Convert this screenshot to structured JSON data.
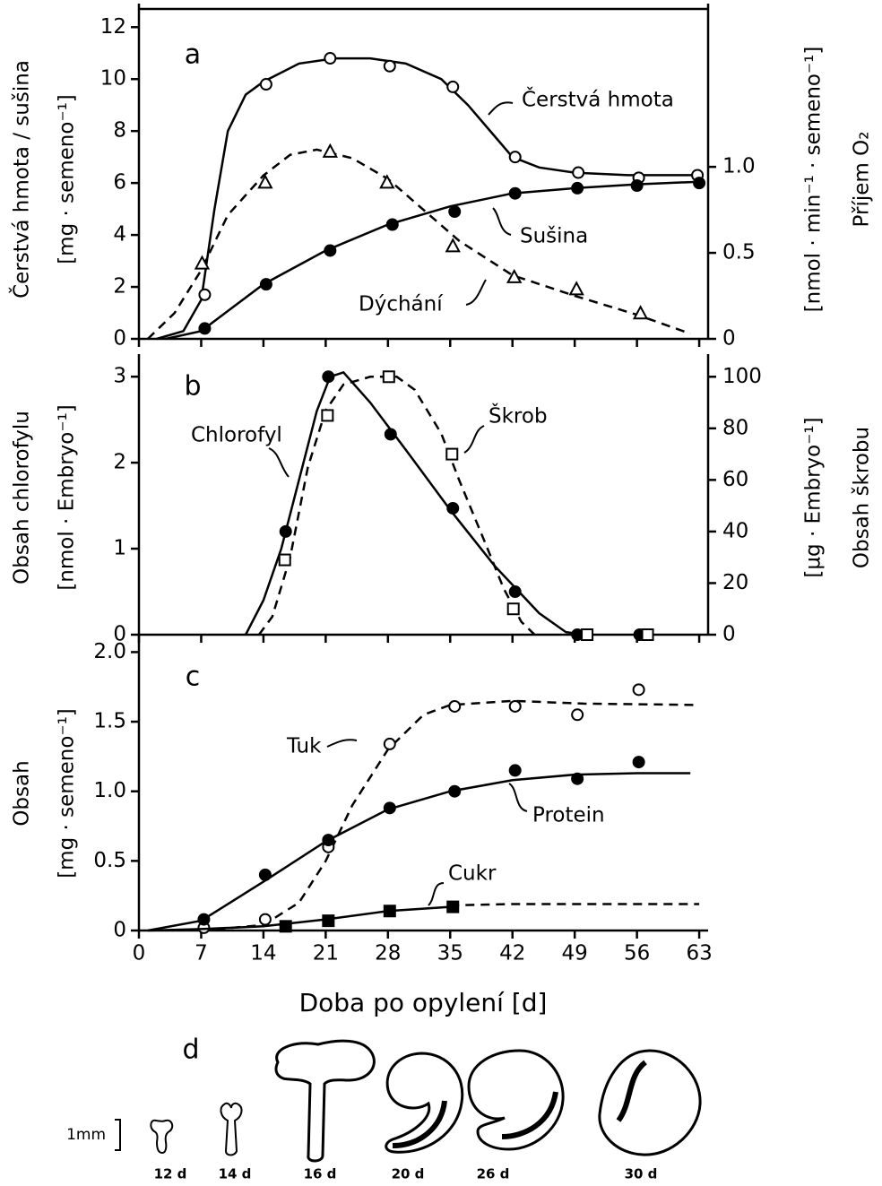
{
  "chart_data": [
    {
      "type": "line",
      "label": "a",
      "ylabel": [
        "Čerstvá hmota / sušina",
        "[mg · semeno⁻¹]"
      ],
      "y2label": [
        "[nmol · min⁻¹ · semeno⁻¹]",
        "Příjem O₂"
      ],
      "xlim": [
        0,
        64
      ],
      "xticks": [
        0,
        7,
        14,
        21,
        28,
        35,
        42,
        49,
        56,
        63
      ],
      "xtick_labels": false,
      "ylim": [
        0,
        12.7
      ],
      "yticks": [
        0,
        2,
        4,
        6,
        8,
        10,
        12
      ],
      "y2lim": [
        0,
        1.918
      ],
      "y2ticks": [
        0,
        0.5,
        {
          "value": 1,
          "label": "1.0"
        }
      ],
      "series": [
        {
          "name": "Čerstvá hmota",
          "color": "#000000",
          "marker": "circle-open",
          "points": {
            "x": [
              7.4,
              14.3,
              21.5,
              28.2,
              35.3,
              42.3,
              49.4,
              56.2,
              62.8
            ],
            "values": [
              1.7,
              9.8,
              10.8,
              10.5,
              9.7,
              7.0,
              6.4,
              6.2,
              6.3
            ]
          },
          "curves": [
            {
              "style": "solid",
              "x": [
                2,
                5,
                7,
                8.5,
                10,
                12,
                14,
                18,
                22,
                26,
                30,
                34,
                37,
                40,
                42,
                45,
                49,
                55,
                63
              ],
              "values": [
                0,
                0.3,
                1.5,
                5,
                8,
                9.4,
                9.9,
                10.6,
                10.8,
                10.8,
                10.6,
                10,
                9,
                7.8,
                7,
                6.6,
                6.4,
                6.3,
                6.3
              ]
            }
          ]
        },
        {
          "name": "Sušina",
          "color": "#000000",
          "marker": "circle-filled",
          "points": {
            "x": [
              7.4,
              14.3,
              21.5,
              28.5,
              35.5,
              42.3,
              49.3,
              56,
              63
            ],
            "values": [
              0.4,
              2.1,
              3.4,
              4.4,
              4.9,
              5.6,
              5.8,
              5.9,
              6.0
            ]
          },
          "curves": [
            {
              "style": "solid",
              "x": [
                3,
                7,
                14,
                21,
                28,
                35,
                42,
                49,
                56,
                63
              ],
              "values": [
                0,
                0.3,
                2.1,
                3.4,
                4.4,
                5.1,
                5.6,
                5.8,
                5.95,
                6.05
              ]
            }
          ]
        },
        {
          "name": "Dýchání",
          "color": "#000000",
          "marker": "triangle-open",
          "axis": "y2",
          "points": {
            "x": [
              7.1,
              14.2,
              21.5,
              27.9,
              35.3,
              42.2,
              49.2,
              56.4
            ],
            "values": [
              0.44,
              0.91,
              1.09,
              0.91,
              0.54,
              0.36,
              0.29,
              0.15
            ]
          },
          "curves": [
            {
              "style": "dashed",
              "x": [
                1,
                4,
                7,
                10,
                14,
                17,
                20,
                24,
                28,
                32,
                36,
                42,
                49,
                56,
                62
              ],
              "values": [
                0,
                0.15,
                0.4,
                0.72,
                0.95,
                1.07,
                1.1,
                1.05,
                0.93,
                0.75,
                0.57,
                0.37,
                0.25,
                0.14,
                0.03
              ]
            }
          ]
        }
      ]
    },
    {
      "type": "line",
      "label": "b",
      "ylabel": [
        "Obsah chlorofylu",
        "[nmol · Embryo⁻¹]"
      ],
      "y2label": [
        "[µg · Embryo⁻¹]",
        "Obsah škrobu"
      ],
      "xlim": [
        0,
        64
      ],
      "xticks": [
        0,
        7,
        14,
        21,
        28,
        35,
        42,
        49,
        56,
        63
      ],
      "xtick_labels": false,
      "ylim": [
        0,
        3.2
      ],
      "yticks": [
        0,
        1,
        2,
        3
      ],
      "y2lim": [
        0,
        106.7
      ],
      "y2ticks": [
        0,
        20,
        40,
        60,
        80,
        100
      ],
      "series": [
        {
          "name": "Chlorofyl",
          "color": "#000000",
          "marker": "circle-filled",
          "points": {
            "x": [
              16.5,
              21.3,
              28.3,
              35.3,
              42.3,
              49.3,
              56.3
            ],
            "values": [
              1.2,
              3.0,
              2.33,
              1.47,
              0.5,
              0,
              0
            ]
          },
          "curves": [
            {
              "style": "solid",
              "x": [
                12,
                14,
                16,
                18,
                20,
                21.5,
                23,
                26,
                30,
                35,
                40,
                45,
                48,
                50
              ],
              "values": [
                0,
                0.4,
                1.0,
                1.8,
                2.6,
                3.0,
                3.05,
                2.7,
                2.15,
                1.45,
                0.8,
                0.25,
                0.03,
                0
              ]
            }
          ]
        },
        {
          "name": "Škrob",
          "color": "#000000",
          "marker": "square-open",
          "axis": "y2",
          "points": {
            "x": [
              16.4,
              21.2,
              28.1,
              35.2,
              42.1,
              50.4,
              57.2
            ],
            "values": [
              29,
              85,
              100,
              70,
              10,
              0,
              0
            ]
          },
          "curves": [
            {
              "style": "dashed",
              "x": [
                13.5,
                15,
                17,
                19,
                21,
                23,
                26,
                29,
                31,
                34,
                36,
                39,
                41,
                43,
                44.5
              ],
              "values": [
                0,
                7,
                30,
                65,
                87,
                97,
                100,
                100,
                95,
                78,
                60,
                35,
                18,
                5,
                0
              ]
            }
          ]
        }
      ]
    },
    {
      "type": "line",
      "label": "c",
      "ylabel": [
        "Obsah",
        "[mg · semeno⁻¹]"
      ],
      "xlabel": "Doba po opylení  [d]",
      "xlim": [
        0,
        64
      ],
      "xticks": [
        0,
        7,
        14,
        21,
        28,
        35,
        42,
        49,
        56,
        63
      ],
      "xtick_labels": true,
      "ylim": [
        0,
        2.08
      ],
      "yticks": [
        0,
        0.5,
        {
          "value": 1,
          "label": "1.0"
        },
        1.5,
        {
          "value": 2,
          "label": "2.0"
        }
      ],
      "series": [
        {
          "name": "Tuk",
          "color": "#000000",
          "marker": "circle-open",
          "points": {
            "x": [
              7.3,
              14.2,
              21.3,
              28.2,
              35.5,
              42.3,
              49.3,
              56.2
            ],
            "values": [
              0.02,
              0.08,
              0.6,
              1.34,
              1.61,
              1.61,
              1.55,
              1.73
            ]
          },
          "curves": [
            {
              "style": "dashed",
              "x": [
                7,
                14,
                18,
                21,
                24,
                28,
                32,
                35,
                42,
                50,
                63
              ],
              "values": [
                0,
                0.04,
                0.2,
                0.5,
                0.9,
                1.3,
                1.55,
                1.62,
                1.65,
                1.63,
                1.62
              ]
            }
          ]
        },
        {
          "name": "Protein",
          "color": "#000000",
          "marker": "circle-filled",
          "points": {
            "x": [
              7.3,
              14.2,
              21.3,
              28.2,
              35.5,
              42.3,
              49.3,
              56.2
            ],
            "values": [
              0.08,
              0.4,
              0.65,
              0.88,
              1.0,
              1.15,
              1.09,
              1.21
            ]
          },
          "curves": [
            {
              "style": "solid",
              "x": [
                1,
                7,
                14,
                21,
                28,
                35,
                42,
                49,
                56,
                62
              ],
              "values": [
                0,
                0.07,
                0.35,
                0.64,
                0.87,
                1.0,
                1.08,
                1.12,
                1.13,
                1.13
              ]
            }
          ]
        },
        {
          "name": "Cukr",
          "color": "#000000",
          "marker": "square-filled",
          "points": {
            "x": [
              16.5,
              21.3,
              28.2,
              35.3
            ],
            "values": [
              0.03,
              0.07,
              0.14,
              0.17
            ]
          },
          "curves": [
            {
              "style": "solid",
              "x": [
                1,
                7,
                14,
                21,
                28,
                35
              ],
              "values": [
                0,
                0.01,
                0.03,
                0.08,
                0.14,
                0.17
              ]
            },
            {
              "style": "dashed",
              "x": [
                35,
                42,
                63
              ],
              "values": [
                0.18,
                0.19,
                0.19
              ]
            }
          ]
        }
      ]
    }
  ],
  "figure_d": {
    "label": "d",
    "scale": "1mm",
    "stages": [
      "12 d",
      "14 d",
      "16 d",
      "20 d",
      "26 d",
      "30 d"
    ]
  }
}
